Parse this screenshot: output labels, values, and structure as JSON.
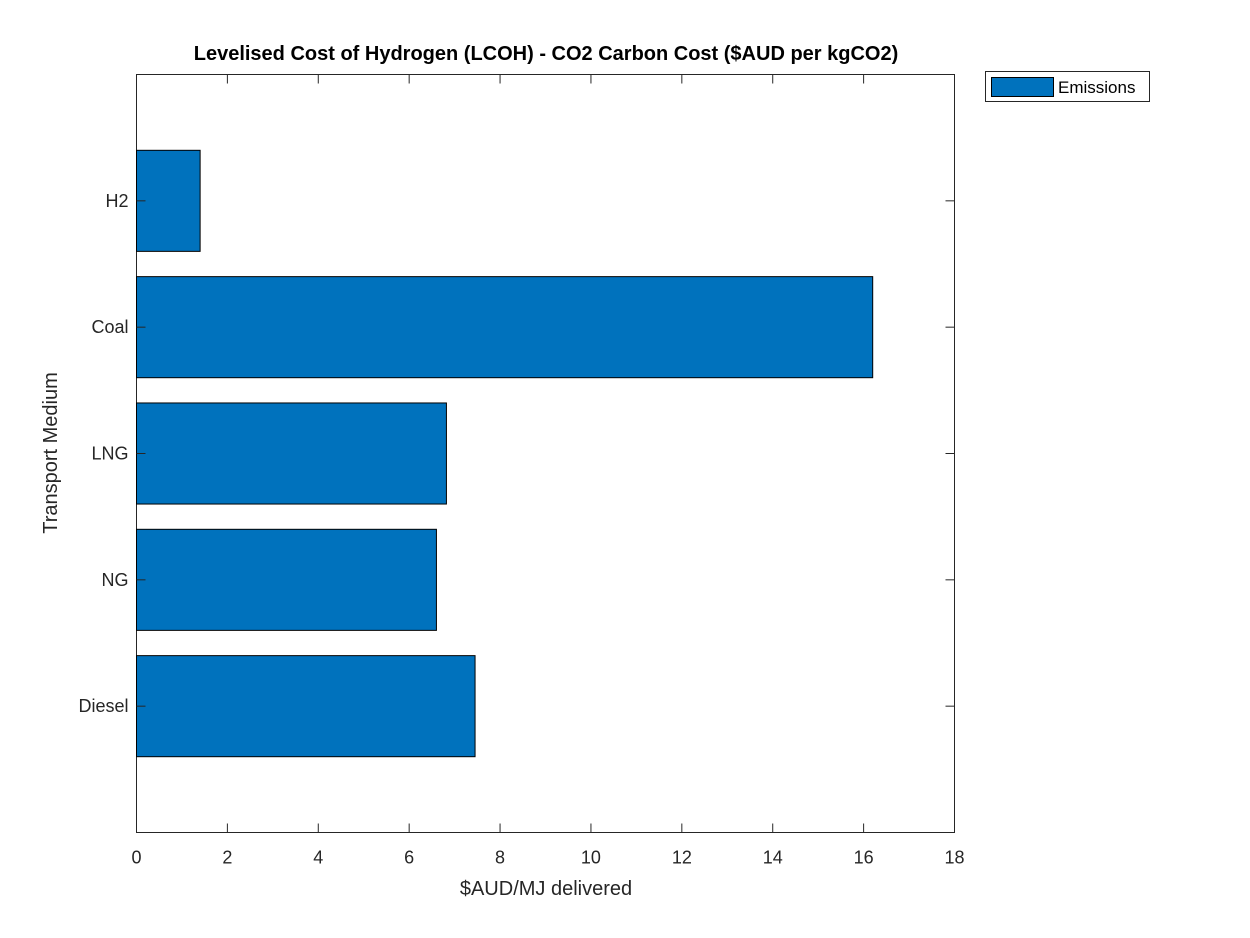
{
  "chart_data": {
    "type": "bar",
    "orientation": "horizontal",
    "title": "Levelised Cost of Hydrogen (LCOH) - CO2 Carbon Cost ($AUD per kgCO2)",
    "xlabel": "$AUD/MJ delivered",
    "ylabel": "Transport Medium",
    "xlim": [
      0,
      18
    ],
    "xticks": [
      "0",
      "2",
      "4",
      "6",
      "8",
      "10",
      "12",
      "14",
      "16",
      "18"
    ],
    "categories": [
      "Diesel",
      "NG",
      "LNG",
      "Coal",
      "H2"
    ],
    "series": [
      {
        "name": "Emissions",
        "values": [
          7.45,
          6.6,
          6.82,
          16.2,
          1.4
        ]
      }
    ],
    "grid": false,
    "legend": "outside top-right",
    "colors": {
      "bar": "#0072BD",
      "edge": "#000000",
      "axis": "#262626"
    }
  }
}
